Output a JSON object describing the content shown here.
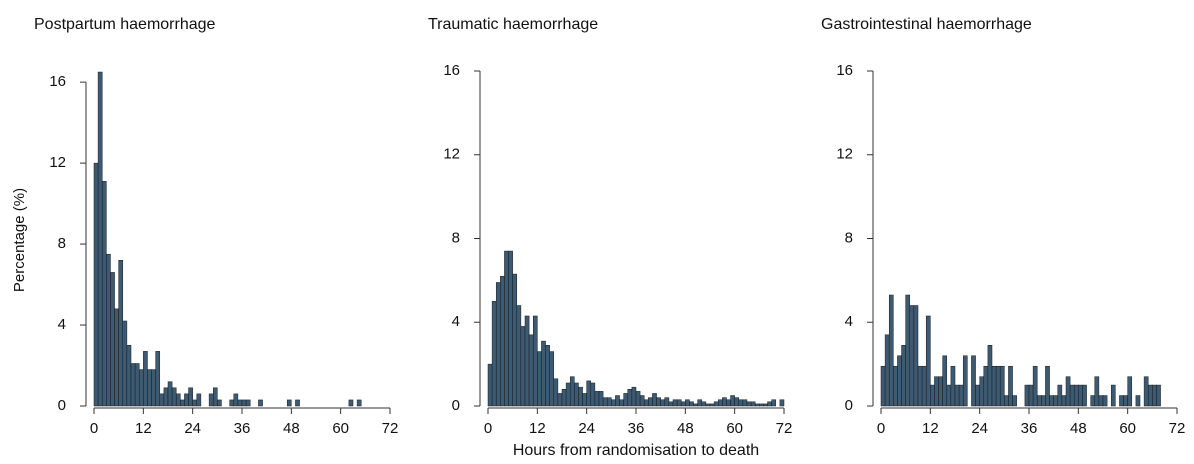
{
  "chart_data": [
    {
      "type": "histogram",
      "title": "Postpartum haemorrhage",
      "ylabel": "Percentage (%)",
      "color": "#3d5a73",
      "bins": [
        0,
        1,
        2,
        3,
        4,
        5,
        6,
        7,
        8,
        9,
        10,
        11,
        12,
        13,
        14,
        15,
        16,
        17,
        18,
        19,
        20,
        21,
        22,
        23,
        24,
        25,
        26,
        27,
        28,
        29,
        30,
        31,
        32,
        33,
        34,
        35,
        36,
        37,
        38,
        39,
        40,
        41,
        42,
        43,
        44,
        45,
        46,
        47,
        48,
        49,
        50,
        51,
        52,
        53,
        54,
        55,
        56,
        57,
        58,
        59,
        60,
        61,
        62,
        63,
        64,
        65,
        66,
        67,
        68,
        69,
        70,
        71,
        72
      ],
      "values": [
        12,
        16.5,
        11.1,
        7.5,
        6.6,
        4.8,
        7.2,
        4.2,
        3,
        2.1,
        2.1,
        1.8,
        2.7,
        1.8,
        1.8,
        2.7,
        0.6,
        0.9,
        1.2,
        0.9,
        0.6,
        0.3,
        0.6,
        0.9,
        0.3,
        0.6,
        0,
        0,
        0.6,
        0.9,
        0.3,
        0,
        0,
        0.3,
        0.6,
        0.3,
        0.3,
        0.3,
        0,
        0,
        0.3,
        0,
        0,
        0,
        0,
        0,
        0,
        0.3,
        0,
        0.3,
        0,
        0,
        0,
        0,
        0,
        0,
        0,
        0,
        0,
        0,
        0,
        0,
        0.3,
        0,
        0.3,
        0,
        0,
        0,
        0,
        0,
        0,
        0
      ],
      "xlim": [
        0,
        72
      ],
      "xticks": [
        0,
        12,
        24,
        36,
        48,
        60,
        72
      ],
      "ylim": [
        0,
        16.6
      ],
      "yticks": [
        0,
        4,
        8,
        12,
        16
      ]
    },
    {
      "type": "histogram",
      "title": "Traumatic haemorrhage",
      "xlabel": "Hours from randomisation to death",
      "color": "#3d5a73",
      "bins": [
        0,
        1,
        2,
        3,
        4,
        5,
        6,
        7,
        8,
        9,
        10,
        11,
        12,
        13,
        14,
        15,
        16,
        17,
        18,
        19,
        20,
        21,
        22,
        23,
        24,
        25,
        26,
        27,
        28,
        29,
        30,
        31,
        32,
        33,
        34,
        35,
        36,
        37,
        38,
        39,
        40,
        41,
        42,
        43,
        44,
        45,
        46,
        47,
        48,
        49,
        50,
        51,
        52,
        53,
        54,
        55,
        56,
        57,
        58,
        59,
        60,
        61,
        62,
        63,
        64,
        65,
        66,
        67,
        68,
        69,
        70,
        71,
        72
      ],
      "values": [
        2,
        5,
        5.9,
        6.2,
        7.4,
        7.4,
        6.3,
        4.8,
        3.8,
        4.3,
        3.4,
        4.3,
        2.6,
        3.1,
        2.9,
        2.6,
        1.3,
        0.6,
        0.8,
        1.1,
        1.4,
        1.1,
        0.9,
        0.6,
        1.2,
        1.1,
        0.7,
        0.7,
        0.4,
        0.4,
        0.3,
        0.5,
        0.3,
        0.6,
        0.8,
        0.9,
        0.7,
        0.5,
        0.3,
        0.4,
        0.6,
        0.4,
        0.3,
        0.4,
        0.2,
        0.3,
        0.3,
        0.2,
        0.3,
        0.2,
        0.1,
        0.3,
        0.2,
        0.1,
        0.1,
        0.2,
        0.3,
        0.4,
        0.3,
        0.5,
        0.4,
        0.3,
        0.3,
        0.2,
        0.2,
        0.1,
        0.1,
        0.1,
        0.2,
        0.3,
        0,
        0.3
      ],
      "xlim": [
        0,
        72
      ],
      "xticks": [
        0,
        12,
        24,
        36,
        48,
        60,
        72
      ],
      "ylim": [
        0,
        16
      ],
      "yticks": [
        0,
        4,
        8,
        12,
        16
      ]
    },
    {
      "type": "histogram",
      "title": "Gastrointestinal haemorrhage",
      "color": "#3d5a73",
      "bins": [
        0,
        1,
        2,
        3,
        4,
        5,
        6,
        7,
        8,
        9,
        10,
        11,
        12,
        13,
        14,
        15,
        16,
        17,
        18,
        19,
        20,
        21,
        22,
        23,
        24,
        25,
        26,
        27,
        28,
        29,
        30,
        31,
        32,
        33,
        34,
        35,
        36,
        37,
        38,
        39,
        40,
        41,
        42,
        43,
        44,
        45,
        46,
        47,
        48,
        49,
        50,
        51,
        52,
        53,
        54,
        55,
        56,
        57,
        58,
        59,
        60,
        61,
        62,
        63,
        64,
        65,
        66,
        67,
        68,
        69,
        70,
        71,
        72
      ],
      "values": [
        1.9,
        3.4,
        5.3,
        1.9,
        2.4,
        2.9,
        5.3,
        4.8,
        4.8,
        1.9,
        1.9,
        4.3,
        1,
        1.4,
        1.4,
        2.4,
        1,
        1.9,
        1,
        1,
        2.4,
        0,
        2.4,
        1,
        1.4,
        1.9,
        2.9,
        1.9,
        1.9,
        1.9,
        0.5,
        1.9,
        0.5,
        0,
        0,
        1,
        1,
        1.9,
        0.5,
        0.5,
        1.9,
        0.5,
        0.5,
        1,
        0.5,
        1.4,
        1,
        1,
        1,
        1,
        0,
        0.5,
        1.4,
        0.5,
        0.5,
        0,
        1,
        0,
        0.5,
        0.5,
        1.4,
        0,
        0.5,
        0,
        1.4,
        1,
        1,
        1,
        0,
        0,
        0,
        0
      ],
      "xlim": [
        0,
        72
      ],
      "xticks": [
        0,
        12,
        24,
        36,
        48,
        60,
        72
      ],
      "ylim": [
        0,
        16
      ],
      "yticks": [
        0,
        4,
        8,
        12,
        16
      ]
    }
  ]
}
